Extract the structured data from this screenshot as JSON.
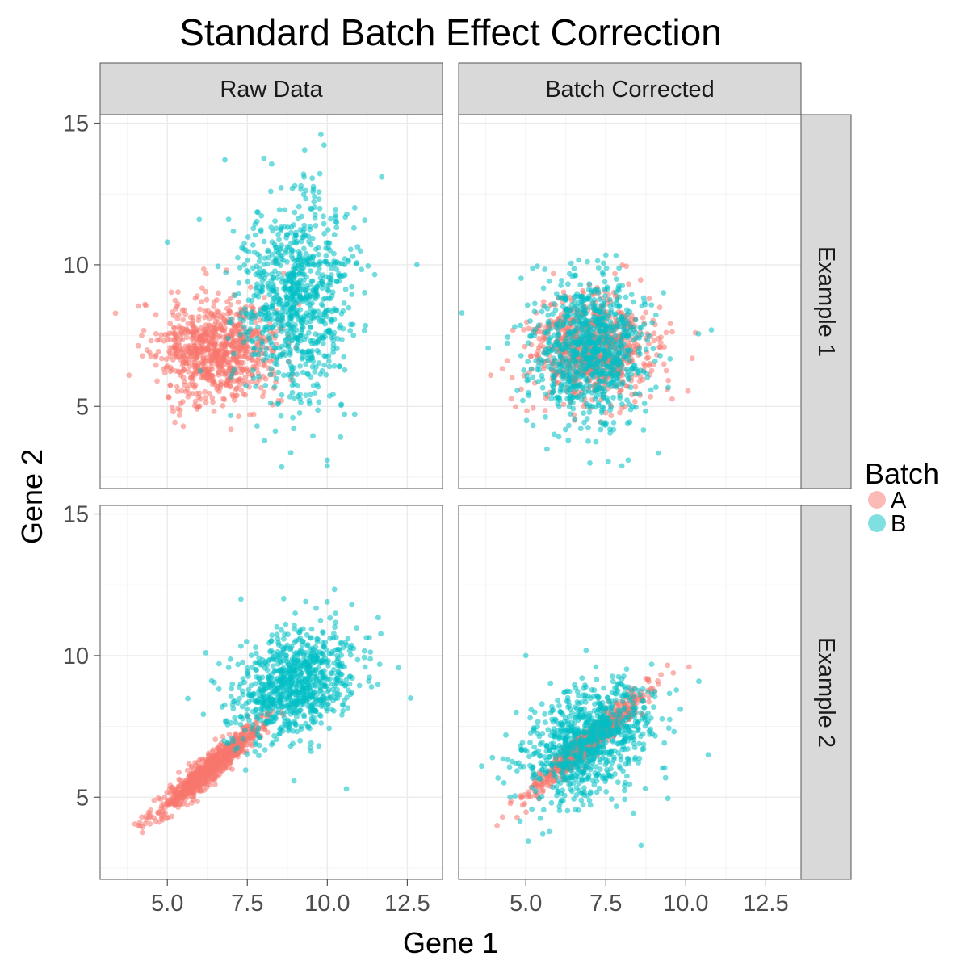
{
  "chart_data": {
    "type": "scatter",
    "title": "Standard Batch Effect Correction",
    "xlabel": "Gene 1",
    "ylabel": "Gene 2",
    "xlim": [
      2.9,
      13.6
    ],
    "ylim": [
      2.1,
      15.3
    ],
    "x_ticks": [
      5.0,
      7.5,
      10.0,
      12.5
    ],
    "x_tick_labels": [
      "5.0",
      "7.5",
      "10.0",
      "12.5"
    ],
    "y_ticks": [
      5,
      10,
      15
    ],
    "y_tick_labels": [
      "5",
      "10",
      "15"
    ],
    "grid": true,
    "columns": [
      "Raw Data",
      "Batch Corrected"
    ],
    "rows": [
      "Example 1",
      "Example 2"
    ],
    "legend": {
      "title": "Batch",
      "position": "right",
      "entries": [
        {
          "label": "A",
          "color": "#F8766D"
        },
        {
          "label": "B",
          "color": "#00BFC4"
        }
      ]
    },
    "panels": [
      {
        "column": "Raw Data",
        "row": "Example 1",
        "seed": 11,
        "series": [
          {
            "name": "A",
            "color": "#F8766D",
            "n": 800,
            "mean": [
              6.5,
              7.0
            ],
            "sd": [
              0.9,
              0.9
            ],
            "rho": 0.0,
            "points": [
              [
                3.8,
                6.1
              ],
              [
                4.2,
                7.5
              ],
              [
                4.3,
                8.6
              ],
              [
                5.5,
                4.3
              ]
            ]
          },
          {
            "name": "B",
            "color": "#00BFC4",
            "n": 850,
            "mean": [
              9.0,
              8.8
            ],
            "sd": [
              0.9,
              1.8
            ],
            "rho": 0.05,
            "points": [
              [
                5.0,
                10.8
              ],
              [
                6.8,
                13.7
              ],
              [
                9.8,
                14.6
              ],
              [
                11.7,
                13.1
              ],
              [
                12.8,
                10.0
              ],
              [
                10.0,
                3.1
              ],
              [
                10.0,
                2.9
              ],
              [
                6.0,
                11.6
              ]
            ]
          }
        ]
      },
      {
        "column": "Batch Corrected",
        "row": "Example 1",
        "seed": 23,
        "series": [
          {
            "name": "A",
            "color": "#F8766D",
            "n": 800,
            "mean": [
              7.0,
              7.0
            ],
            "sd": [
              0.9,
              0.9
            ],
            "rho": 0.0,
            "points": [
              [
                3.9,
                6.1
              ],
              [
                10.2,
                6.7
              ],
              [
                10.3,
                7.6
              ]
            ]
          },
          {
            "name": "B",
            "color": "#00BFC4",
            "n": 850,
            "mean": [
              7.0,
              7.0
            ],
            "sd": [
              0.9,
              1.3
            ],
            "rho": 0.0,
            "points": [
              [
                3.0,
                8.3
              ],
              [
                10.8,
                7.7
              ],
              [
                8.0,
                2.9
              ],
              [
                7.0,
                3.0
              ],
              [
                8.2,
                3.1
              ]
            ]
          }
        ]
      },
      {
        "column": "Raw Data",
        "row": "Example 2",
        "seed": 37,
        "series": [
          {
            "name": "A",
            "color": "#F8766D",
            "n": 800,
            "mean": [
              6.3,
              6.0
            ],
            "sd": [
              0.8,
              0.8
            ],
            "rho": 0.95,
            "points": [
              [
                4.1,
                4.0
              ],
              [
                4.2,
                4.3
              ]
            ]
          },
          {
            "name": "B",
            "color": "#00BFC4",
            "n": 850,
            "mean": [
              9.0,
              9.0
            ],
            "sd": [
              1.0,
              1.0
            ],
            "rho": 0.35,
            "points": [
              [
                7.3,
                12.0
              ],
              [
                10.0,
                11.9
              ],
              [
                12.6,
                8.5
              ],
              [
                10.6,
                5.3
              ],
              [
                6.2,
                10.1
              ]
            ]
          }
        ]
      },
      {
        "column": "Batch Corrected",
        "row": "Example 2",
        "seed": 53,
        "series": [
          {
            "name": "A",
            "color": "#F8766D",
            "n": 800,
            "mean": [
              7.0,
              7.0
            ],
            "sd": [
              0.8,
              0.8
            ],
            "rho": 0.95,
            "points": [
              [
                4.1,
                4.0
              ],
              [
                10.1,
                9.6
              ]
            ]
          },
          {
            "name": "B",
            "color": "#00BFC4",
            "n": 850,
            "mean": [
              7.0,
              7.0
            ],
            "sd": [
              1.0,
              1.0
            ],
            "rho": 0.35,
            "points": [
              [
                5.0,
                10.0
              ],
              [
                8.6,
                3.3
              ],
              [
                10.7,
                6.5
              ],
              [
                4.7,
                8.0
              ],
              [
                5.8,
                4.8
              ]
            ]
          }
        ]
      }
    ]
  }
}
